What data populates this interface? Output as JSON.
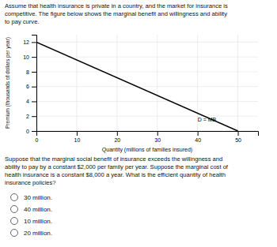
{
  "chart_data": {
    "type": "line",
    "title": "Assume that health insurance is private in a country, and the market for insurance is\ncompetitive. The figure below shows the marginal benefit and willingness and ability\nto pay curve.",
    "subtitle": "Suppose that the marginal social benefit of insurance exceeds the willingness and\nability to pay by a constant $2,000 per family per year. Suppose the marginal cost of\nhealth insurance is a constant $8,000 a year. What is the efficient quantity of health\ninsurance policies?",
    "xlabel": "Quantity (millions of families insured)",
    "ylabel": "Premium (thousands of dollars per year)",
    "x": [
      0,
      50
    ],
    "series": [
      {
        "values": [
          12,
          0
        ],
        "color": "#000000"
      }
    ],
    "xlim": [
      0,
      55
    ],
    "ylim": [
      0,
      13
    ],
    "xticks": [
      0,
      10,
      20,
      30,
      40,
      50
    ],
    "yticks": [
      0,
      2,
      4,
      6,
      8,
      10,
      12
    ],
    "grid": true,
    "annotations": [
      {
        "text": "D = MB",
        "x": 40,
        "y": 1.5
      }
    ],
    "answer_options": [
      "30 million.",
      "40 million.",
      "10 million.",
      "20 million."
    ]
  }
}
